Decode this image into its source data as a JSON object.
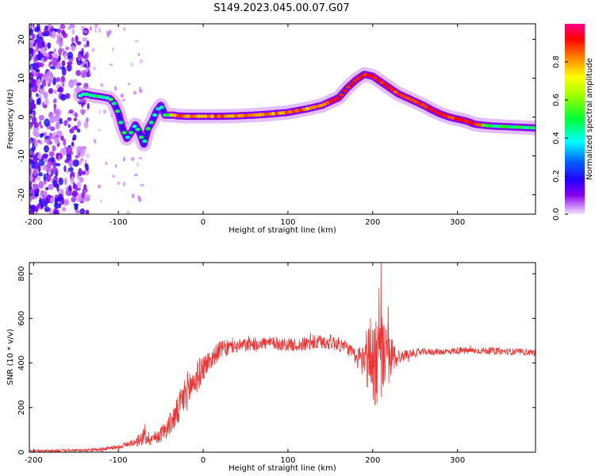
{
  "figure": {
    "title": "S149.2023.045.00.07.G07"
  },
  "chart_data": [
    {
      "type": "heatmap",
      "xlabel": "Height of straight line (km)",
      "ylabel": "Frequency (Hz)",
      "xlim": [
        -205,
        392
      ],
      "ylim": [
        -25,
        24
      ],
      "x_ticks": [
        -200,
        -100,
        0,
        100,
        200,
        300
      ],
      "y_ticks": [
        -20,
        -10,
        0,
        10,
        20
      ],
      "grid": false,
      "ridge": {
        "x": [
          -145,
          -140,
          -130,
          -120,
          -110,
          -105,
          -100,
          -95,
          -90,
          -85,
          -80,
          -75,
          -70,
          -65,
          -60,
          -55,
          -50,
          -45,
          -40,
          -35,
          -30,
          -20,
          0,
          20,
          40,
          60,
          80,
          100,
          120,
          140,
          150,
          160,
          170,
          180,
          190,
          200,
          210,
          220,
          230,
          240,
          250,
          260,
          270,
          280,
          290,
          300,
          310,
          320,
          330,
          340,
          360,
          392
        ],
        "freq": [
          5.5,
          6,
          5.5,
          5.2,
          4.8,
          3.5,
          1,
          -3,
          -5.5,
          -4,
          -2,
          -4,
          -7,
          -3,
          -1,
          1.5,
          3,
          0.5,
          0.5,
          0.5,
          0.3,
          0.2,
          0.2,
          0.2,
          0.3,
          0.5,
          0.8,
          1.2,
          2,
          3,
          4,
          5,
          7.5,
          9.5,
          11,
          10.5,
          9,
          7.5,
          6,
          5,
          4,
          3,
          1.8,
          0.8,
          0,
          -0.5,
          -1,
          -1.8,
          -2.1,
          -2.3,
          -2.5,
          -2.8
        ]
      },
      "colorbar": {
        "label": "Normalized spectral amplitude",
        "range": [
          0,
          1
        ],
        "ticks": [
          0.0,
          0.2,
          0.4,
          0.6,
          0.8
        ],
        "tick_labels": [
          "0.0",
          "0.2",
          "0.4",
          "0.6",
          "0.8"
        ],
        "colormap": "hsv-rainbow"
      }
    },
    {
      "type": "line",
      "xlabel": "Height of straight line (km)",
      "ylabel": "SNR (10 * v/v)",
      "xlim": [
        -205,
        392
      ],
      "ylim": [
        0,
        850
      ],
      "x_ticks": [
        -200,
        -100,
        0,
        100,
        200,
        300
      ],
      "y_ticks": [
        0,
        200,
        400,
        600,
        800
      ],
      "grid": false,
      "series": [
        {
          "color": "#ee3333",
          "x": [
            -205,
            -150,
            -120,
            -100,
            -80,
            -70,
            -60,
            -50,
            -40,
            -30,
            -20,
            -10,
            0,
            10,
            20,
            30,
            50,
            70,
            90,
            110,
            130,
            150,
            170,
            180,
            190,
            195,
            200,
            205,
            210,
            215,
            220,
            225,
            230,
            235,
            240,
            260,
            280,
            300,
            320,
            340,
            360,
            380,
            392
          ],
          "values": [
            5,
            8,
            12,
            25,
            45,
            70,
            60,
            80,
            120,
            180,
            270,
            320,
            380,
            420,
            460,
            470,
            480,
            490,
            485,
            480,
            490,
            495,
            470,
            420,
            420,
            430,
            430,
            420,
            440,
            420,
            420,
            430,
            425,
            430,
            440,
            450,
            450,
            455,
            455,
            455,
            450,
            450,
            445
          ],
          "noise": [
            5,
            6,
            8,
            10,
            15,
            40,
            30,
            35,
            50,
            70,
            90,
            80,
            60,
            45,
            40,
            35,
            30,
            30,
            30,
            30,
            35,
            35,
            30,
            40,
            90,
            180,
            220,
            230,
            200,
            150,
            110,
            70,
            40,
            25,
            20,
            15,
            15,
            15,
            15,
            15,
            15,
            15,
            15
          ]
        }
      ]
    }
  ]
}
